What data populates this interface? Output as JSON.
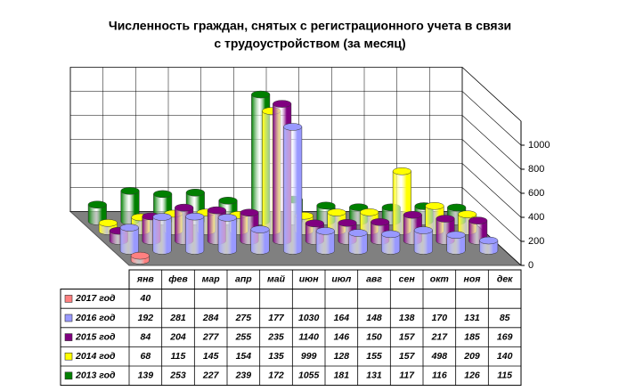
{
  "chart_data": {
    "type": "bar",
    "style": "3d-cylinder",
    "title": [
      "Численность граждан, снятых с регистрационного учета в связи",
      "с трудоустройством (за месяц)"
    ],
    "categories": [
      "янв",
      "фев",
      "мар",
      "апр",
      "май",
      "июн",
      "июл",
      "авг",
      "сен",
      "окт",
      "ноя",
      "дек"
    ],
    "series": [
      {
        "name": "2017 год",
        "color": "#ff8080",
        "values": [
          40,
          null,
          null,
          null,
          null,
          null,
          null,
          null,
          null,
          null,
          null,
          null
        ]
      },
      {
        "name": "2016 год",
        "color": "#9999ff",
        "values": [
          192,
          281,
          284,
          275,
          177,
          1030,
          164,
          148,
          138,
          170,
          131,
          85
        ]
      },
      {
        "name": "2015 год",
        "color": "#800080",
        "values": [
          84,
          204,
          277,
          255,
          235,
          1140,
          146,
          150,
          157,
          217,
          185,
          169
        ]
      },
      {
        "name": "2014 год",
        "color": "#ffff00",
        "values": [
          68,
          115,
          145,
          154,
          135,
          999,
          128,
          155,
          157,
          498,
          209,
          140
        ]
      },
      {
        "name": "2013 год",
        "color": "#008000",
        "values": [
          139,
          253,
          227,
          239,
          172,
          1055,
          181,
          131,
          117,
          116,
          126,
          115
        ]
      }
    ],
    "ylim": [
      0,
      1200
    ],
    "yticks": [
      0,
      200,
      400,
      600,
      800,
      1000
    ],
    "grid": true,
    "data_table": true
  }
}
